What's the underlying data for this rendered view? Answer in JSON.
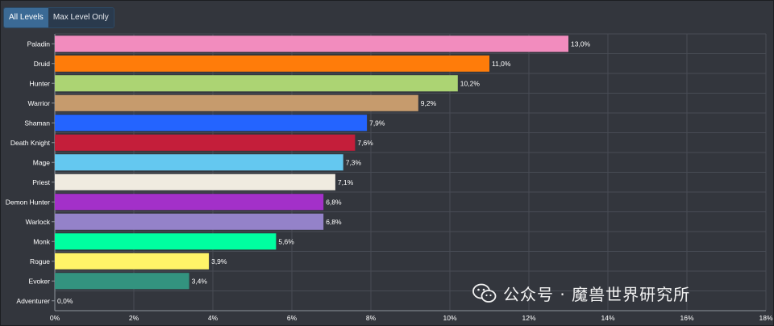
{
  "toggles": {
    "all_levels": "All Levels",
    "max_level_only": "Max Level Only",
    "active": "all_levels"
  },
  "watermark": {
    "text": "公众号 · 魔兽世界研究所"
  },
  "colors": {
    "background": "#33363d",
    "grid": "#484c55",
    "axis": "#8e949c",
    "label": "#ffffff"
  },
  "chart_data": {
    "type": "bar",
    "orientation": "horizontal",
    "categories": [
      "Paladin",
      "Druid",
      "Hunter",
      "Warrior",
      "Shaman",
      "Death Knight",
      "Mage",
      "Priest",
      "Demon Hunter",
      "Warlock",
      "Monk",
      "Rogue",
      "Evoker",
      "Adventurer"
    ],
    "values": [
      13.0,
      11.0,
      10.2,
      9.2,
      7.9,
      7.6,
      7.3,
      7.1,
      6.8,
      6.8,
      5.6,
      3.9,
      3.4,
      0.0
    ],
    "value_labels": [
      "13,0%",
      "11,0%",
      "10,2%",
      "9,2%",
      "7,9%",
      "7,6%",
      "7,3%",
      "7,1%",
      "6,8%",
      "6,8%",
      "5,6%",
      "3,9%",
      "3,4%",
      "0,0%"
    ],
    "bar_colors": [
      "#f28cbe",
      "#ff7c0a",
      "#acd473",
      "#c69b6d",
      "#2464ff",
      "#c41e3a",
      "#64c8f0",
      "#f0ebe0",
      "#a330c9",
      "#9482c9",
      "#00ffa0",
      "#fff468",
      "#33937f",
      "#b0b0b0"
    ],
    "xlim": [
      0,
      18
    ],
    "x_ticks": [
      0,
      2,
      4,
      6,
      8,
      10,
      12,
      14,
      16,
      18
    ],
    "x_tick_labels": [
      "0%",
      "2%",
      "4%",
      "6%",
      "8%",
      "10%",
      "12%",
      "14%",
      "16%",
      "18%"
    ],
    "grid": true,
    "legend": "none"
  }
}
